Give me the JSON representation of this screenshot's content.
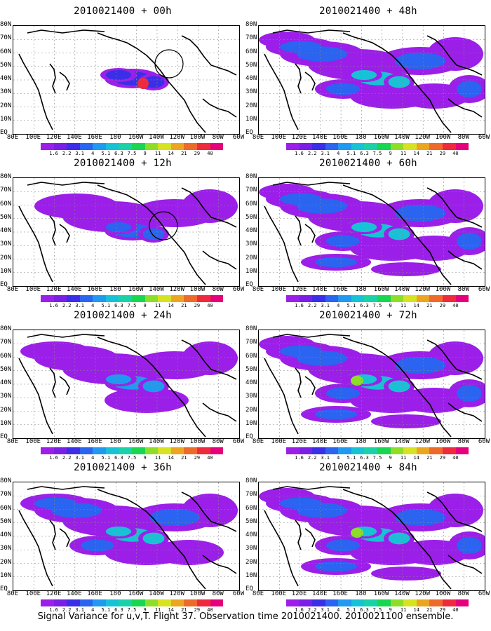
{
  "caption": "Signal Variance for u,v,T. Flight 37. Observation time 2010021400. 2010021100 ensemble.",
  "panels": [
    {
      "title": "2010021400 + 00h",
      "intensity": 0
    },
    {
      "title": "2010021400 + 48h",
      "intensity": 4
    },
    {
      "title": "2010021400 + 12h",
      "intensity": 1
    },
    {
      "title": "2010021400 + 60h",
      "intensity": 5
    },
    {
      "title": "2010021400 + 24h",
      "intensity": 2
    },
    {
      "title": "2010021400 + 72h",
      "intensity": 6
    },
    {
      "title": "2010021400 + 36h",
      "intensity": 3
    },
    {
      "title": "2010021400 + 84h",
      "intensity": 7
    }
  ],
  "lon_labels": [
    "80E",
    "100E",
    "120E",
    "140E",
    "160E",
    "180",
    "160W",
    "140W",
    "120W",
    "100W",
    "80W",
    "60W"
  ],
  "lat_labels": [
    "80N",
    "70N",
    "60N",
    "50N",
    "40N",
    "30N",
    "20N",
    "10N",
    "EQ"
  ],
  "colorbar": {
    "labels": [
      "1.6",
      "2.2",
      "3.1",
      "4",
      "5.1",
      "6.3",
      "7.5",
      "9",
      "11",
      "14",
      "21",
      "29",
      "40"
    ],
    "colors": [
      "#9b1fe8",
      "#7a1fe6",
      "#3b2ee8",
      "#2a64f0",
      "#1f9af0",
      "#18c2d6",
      "#19d2a8",
      "#19d650",
      "#8ede28",
      "#d6e222",
      "#eca520",
      "#ee6a2a",
      "#ee2a3c",
      "#e6007a"
    ]
  },
  "circles": [
    {
      "panel": 0,
      "label": "obs-circle"
    },
    {
      "panel": 2,
      "label": "obs-circle"
    }
  ]
}
